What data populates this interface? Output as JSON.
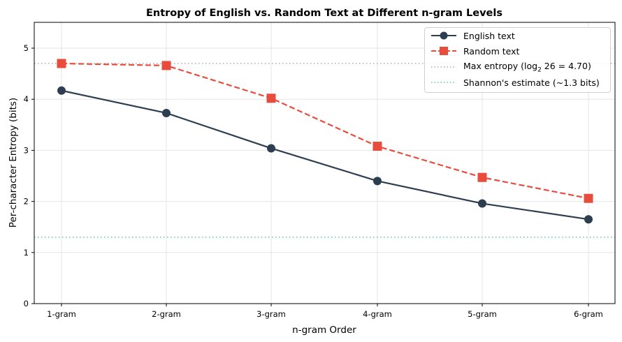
{
  "chart_data": {
    "type": "line",
    "title": "Entropy of English vs. Random Text at Different n-gram Levels",
    "xlabel": "n-gram Order",
    "ylabel": "Per-character Entropy (bits)",
    "categories": [
      "1-gram",
      "2-gram",
      "3-gram",
      "4-gram",
      "5-gram",
      "6-gram"
    ],
    "series": [
      {
        "name": "English text",
        "color": "#2c3e50",
        "marker": "circle",
        "linestyle": "solid",
        "values": [
          4.17,
          3.73,
          3.04,
          2.4,
          1.96,
          1.65
        ]
      },
      {
        "name": "Random text",
        "color": "#e74c3c",
        "marker": "square",
        "linestyle": "dashed",
        "values": [
          4.7,
          4.66,
          4.02,
          3.08,
          2.47,
          2.06
        ]
      }
    ],
    "reference_lines": [
      {
        "name": "Max entropy (log2 26 = 4.70)",
        "y": 4.7,
        "color": "#aaaaaa",
        "linestyle": "dotted"
      },
      {
        "name": "Shannon's estimate (~1.3 bits)",
        "y": 1.3,
        "color": "#5fc9a0",
        "linestyle": "dotted"
      }
    ],
    "ylim": [
      0,
      5.5
    ],
    "yticks": [
      0,
      1,
      2,
      3,
      4,
      5
    ],
    "grid": true,
    "legend_position": "upper right"
  },
  "legend": {
    "english": "English text",
    "random": "Random text",
    "max_prefix": "Max entropy (log",
    "max_sub": "2",
    "max_suffix": " 26 = 4.70)",
    "shannon": "Shannon's estimate (~1.3 bits)"
  }
}
